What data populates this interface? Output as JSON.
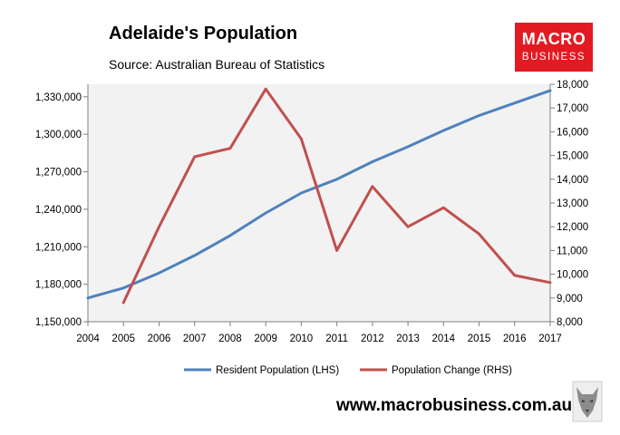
{
  "header": {
    "title": "Adelaide's Population",
    "subtitle": "Source: Australian Bureau of Statistics"
  },
  "logo": {
    "line1": "MACRO",
    "line2": "BUSINESS",
    "color": "#e21b23"
  },
  "footer": {
    "website": "www.macrobusiness.com.au",
    "wolf_icon": "wolf-logo-icon"
  },
  "chart_data": {
    "type": "line",
    "title": "Adelaide's Population",
    "subtitle": "Source: Australian Bureau of Statistics",
    "categories": [
      "2004",
      "2005",
      "2006",
      "2007",
      "2008",
      "2009",
      "2010",
      "2011",
      "2012",
      "2013",
      "2014",
      "2015",
      "2016",
      "2017"
    ],
    "left_axis": {
      "ylim": [
        1150000,
        1340000
      ],
      "ticks": [
        1150000,
        1180000,
        1210000,
        1240000,
        1270000,
        1300000,
        1330000
      ],
      "tick_labels": [
        "1,150,000",
        "1,180,000",
        "1,210,000",
        "1,240,000",
        "1,270,000",
        "1,300,000",
        "1,330,000"
      ]
    },
    "right_axis": {
      "ylim": [
        8000,
        18000
      ],
      "ticks": [
        8000,
        9000,
        10000,
        11000,
        12000,
        13000,
        14000,
        15000,
        16000,
        17000,
        18000
      ],
      "tick_labels": [
        "8,000",
        "9,000",
        "10,000",
        "11,000",
        "12,000",
        "13,000",
        "14,000",
        "15,000",
        "16,000",
        "17,000",
        "18,000"
      ]
    },
    "series": [
      {
        "name": "Resident Population (LHS)",
        "axis": "left",
        "color": "#4f81bd",
        "values": [
          1169000,
          1177000,
          1189000,
          1203000,
          1219000,
          1237000,
          1253000,
          1264000,
          1278000,
          1290000,
          1303000,
          1315000,
          1325000,
          1335000
        ]
      },
      {
        "name": "Population Change (RHS)",
        "axis": "right",
        "color": "#c0504d",
        "values": [
          null,
          8800,
          12000,
          14950,
          15300,
          17800,
          15700,
          11000,
          13700,
          12000,
          12800,
          11700,
          9950,
          9650
        ]
      }
    ],
    "plot_background": "#f2f2f2",
    "grid": false,
    "legend_position": "bottom"
  }
}
